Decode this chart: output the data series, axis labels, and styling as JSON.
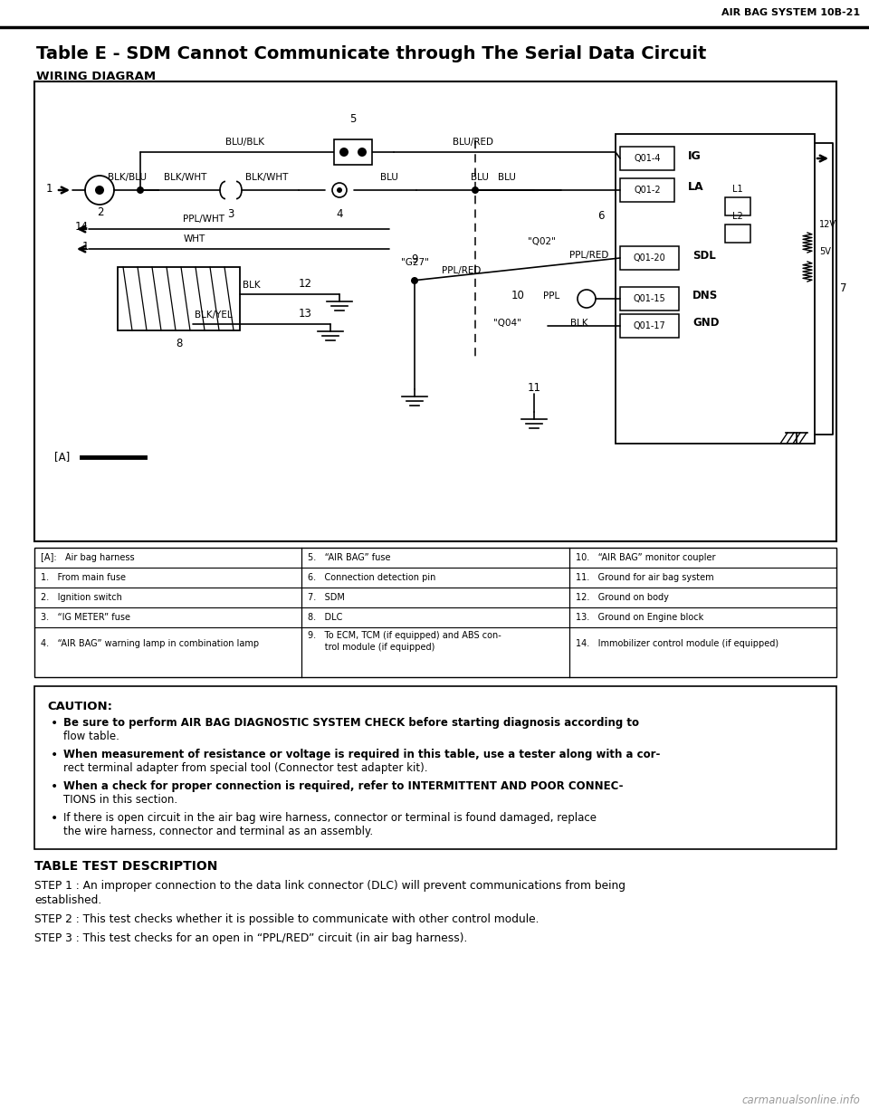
{
  "header_text": "AIR BAG SYSTEM 10B-21",
  "title": "Table E - SDM Cannot Communicate through The Serial Data Circuit",
  "wiring_diagram_label": "WIRING DIAGRAM",
  "rows_data": [
    [
      "[A]:   Air bag harness",
      "5.   “AIR BAG” fuse",
      "10.   “AIR BAG” monitor coupler"
    ],
    [
      "1.   From main fuse",
      "6.   Connection detection pin",
      "11.   Ground for air bag system"
    ],
    [
      "2.   Ignition switch",
      "7.   SDM",
      "12.   Ground on body"
    ],
    [
      "3.   “IG METER” fuse",
      "8.   DLC",
      "13.   Ground on Engine block"
    ],
    [
      "4.   “AIR BAG” warning lamp in combination lamp",
      "9.   To ECM, TCM (if equipped) and ABS con-\n      trol module (if equipped)",
      "14.   Immobilizer control module (if equipped)"
    ]
  ],
  "caution_title": "CAUTION:",
  "caution_bullets": [
    [
      "Be sure to perform ",
      "AIR BAG DIAGNOSTIC SYSTEM CHECK",
      " before starting diagnosis according to\nflow table."
    ],
    [
      "When measurement of resistance or voltage is required in this table, use a tester along with a cor-\nrect terminal adapter from special tool (",
      "Connector test adapter kit",
      ")."
    ],
    [
      "When a check for proper connection is required, refer to ",
      "INTERMITTENT AND POOR CONNEC-\nTIONS",
      " in this section."
    ],
    [
      "If there is open circuit in the air bag wire harness, connector or terminal is found damaged, replace\nthe wire harness, connector and terminal as an assembly.",
      "",
      ""
    ]
  ],
  "test_description_title": "TABLE TEST DESCRIPTION",
  "test_steps": [
    "STEP 1 : An improper connection to the data link connector (DLC) will prevent communications from being\nestablished.",
    "STEP 2 : This test checks whether it is possible to communicate with other control module.",
    "STEP 3 : This test checks for an open in “PPL/RED” circuit (in air bag harness)."
  ],
  "watermark": "carmanualsonline.info"
}
